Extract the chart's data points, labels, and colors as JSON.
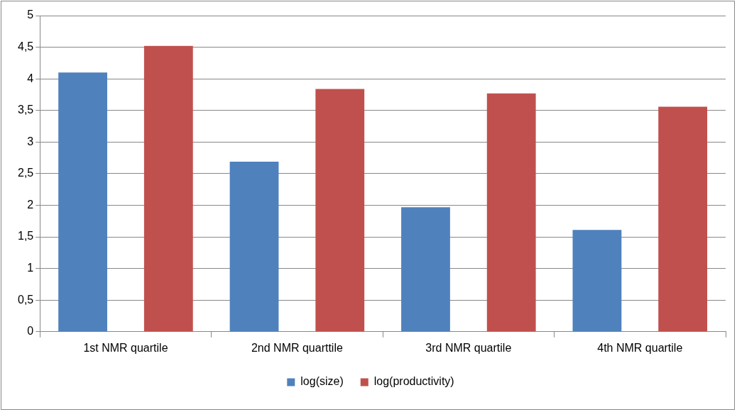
{
  "chart_data": {
    "type": "bar",
    "categories": [
      "1st NMR quartile",
      "2nd NMR quarttile",
      "3rd NMR quartile",
      "4th NMR quartile"
    ],
    "series": [
      {
        "name": "log(size)",
        "color": "#4f81bd",
        "values": [
          4.1,
          2.69,
          1.97,
          1.61
        ]
      },
      {
        "name": "log(productivity)",
        "color": "#c0504d",
        "values": [
          4.52,
          3.84,
          3.77,
          3.56
        ]
      }
    ],
    "ylim": [
      0,
      5
    ],
    "yticks": [
      0,
      {
        "value": 0.5,
        "label": "0,5"
      },
      1,
      {
        "value": 1.5,
        "label": "1,5"
      },
      2,
      {
        "value": 2.5,
        "label": "2,5"
      },
      3,
      {
        "value": 3.5,
        "label": "3,5"
      },
      4,
      {
        "value": 4.5,
        "label": "4,5"
      },
      5
    ],
    "grid": "y",
    "legend": "bottom"
  }
}
